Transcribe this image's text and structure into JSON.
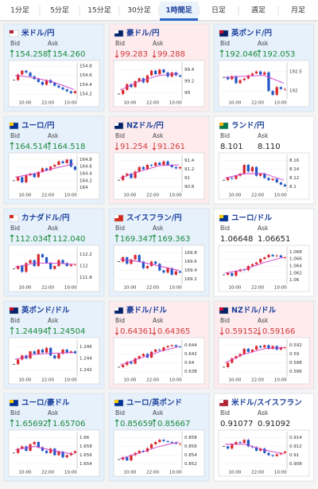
{
  "tabs": {
    "items": [
      "1分足",
      "5分足",
      "15分足",
      "30分足",
      "1時間足",
      "日足",
      "週足",
      "月足"
    ],
    "selected": 4
  },
  "cards": [
    {
      "name": "米ドル/円",
      "trend": "up",
      "bid_label": "Bid",
      "ask_label": "Ask",
      "bid": "154.258",
      "ask": "154.260",
      "chart": {
        "type": "candlestick",
        "ylim": [
          154.1,
          154.85
        ],
        "yticks": [
          154.2,
          154.4,
          154.6,
          154.8
        ],
        "xticks": [
          "10:00",
          "22:00",
          "10:00"
        ],
        "closes": [
          154.5,
          154.62,
          154.7,
          154.66,
          154.58,
          154.52,
          154.46,
          154.4,
          154.5,
          154.44,
          154.38,
          154.34,
          154.3,
          154.26,
          154.22,
          154.26
        ],
        "ma": [
          154.6,
          154.55,
          154.45,
          154.3
        ]
      }
    },
    {
      "name": "豪ドル/円",
      "trend": "down",
      "bid_label": "Bid",
      "ask_label": "Ask",
      "bid": "99.283",
      "ask": "99.288",
      "chart": {
        "type": "candlestick",
        "ylim": [
          98.9,
          99.5
        ],
        "yticks": [
          99,
          99.2,
          99.4
        ],
        "xticks": [
          "10:00",
          "22:00",
          "10:00"
        ],
        "closes": [
          98.98,
          99.05,
          99.15,
          99.1,
          99.2,
          99.25,
          99.18,
          99.3,
          99.38,
          99.32,
          99.4,
          99.35,
          99.28,
          99.35,
          99.3,
          99.28
        ],
        "ma": [
          99.05,
          99.2,
          99.3,
          99.33
        ]
      }
    },
    {
      "name": "英ポンド/円",
      "trend": "up",
      "bid_label": "Bid",
      "ask_label": "Ask",
      "bid": "192.046",
      "ask": "192.053",
      "chart": {
        "type": "candlestick",
        "ylim": [
          191.8,
          192.7
        ],
        "yticks": [
          192,
          192.5
        ],
        "xticks": [
          "10:00",
          "22:00",
          "10:00"
        ],
        "closes": [
          192.35,
          192.3,
          192.38,
          192.2,
          192.28,
          192.32,
          192.4,
          192.45,
          192.5,
          192.42,
          192.48,
          192,
          191.9,
          192.1,
          192.05,
          192.05
        ],
        "ma": [
          192.35,
          192.38,
          192.4,
          192.2
        ]
      }
    },
    {
      "name": "ユーロ/円",
      "trend": "up",
      "bid_label": "Bid",
      "ask_label": "Ask",
      "bid": "164.514",
      "ask": "164.518",
      "chart": {
        "type": "candlestick",
        "ylim": [
          163.9,
          164.9
        ],
        "yticks": [
          164,
          164.2,
          164.4,
          164.6,
          164.8
        ],
        "xticks": [
          "10:00",
          "22:00",
          "10:00"
        ],
        "closes": [
          164.2,
          164.3,
          164.15,
          164.35,
          164.4,
          164.3,
          164.45,
          164.55,
          164.5,
          164.6,
          164.65,
          164.75,
          164.7,
          164.8,
          164.6,
          164.51
        ],
        "ma": [
          164.3,
          164.4,
          164.55,
          164.68
        ]
      }
    },
    {
      "name": "NZドル/円",
      "trend": "down",
      "bid_label": "Bid",
      "ask_label": "Ask",
      "bid": "91.254",
      "ask": "91.261",
      "chart": {
        "type": "candlestick",
        "ylim": [
          90.7,
          91.5
        ],
        "yticks": [
          90.8,
          91,
          91.2,
          91.4
        ],
        "xticks": [
          "10:00",
          "22:00",
          "10:00"
        ],
        "closes": [
          90.95,
          91.05,
          91.1,
          91,
          91.15,
          91.25,
          91.2,
          91.3,
          91.28,
          91.35,
          91.3,
          91.38,
          91.3,
          91.25,
          91.22,
          91.25
        ],
        "ma": [
          91,
          91.15,
          91.28,
          91.3
        ]
      }
    },
    {
      "name": "ランド/円",
      "trend": null,
      "bid_label": "Bid",
      "ask_label": "Ask",
      "bid": "8.101",
      "ask": "8.110",
      "chart": {
        "type": "candlestick",
        "ylim": [
          8.09,
          8.17
        ],
        "yticks": [
          8.1,
          8.12,
          8.14,
          8.16
        ],
        "xticks": [
          "10:00",
          "22:00",
          "10:00"
        ],
        "closes": [
          8.115,
          8.12,
          8.118,
          8.125,
          8.13,
          8.15,
          8.135,
          8.145,
          8.125,
          8.13,
          8.12,
          8.115,
          8.118,
          8.11,
          8.105,
          8.101
        ],
        "ma": [
          8.12,
          8.13,
          8.13,
          8.115
        ]
      }
    },
    {
      "name": "カナダドル/円",
      "trend": "up",
      "bid_label": "Bid",
      "ask_label": "Ask",
      "bid": "112.034",
      "ask": "112.040",
      "chart": {
        "type": "candlestick",
        "ylim": [
          111.7,
          112.3
        ],
        "yticks": [
          111.8,
          112,
          112.2
        ],
        "xticks": [
          "10:00",
          "22:00",
          "10:00"
        ],
        "closes": [
          111.95,
          112,
          111.9,
          112.05,
          112.1,
          112,
          112.2,
          112.15,
          112.05,
          111.95,
          112,
          112.1,
          112.05,
          112,
          112.02,
          112.03
        ],
        "ma": [
          111.98,
          112.05,
          112.05,
          112.03
        ]
      }
    },
    {
      "name": "スイスフラン/円",
      "trend": "up",
      "bid_label": "Bid",
      "ask_label": "Ask",
      "bid": "169.347",
      "ask": "169.363",
      "chart": {
        "type": "candlestick",
        "ylim": [
          169.1,
          169.9
        ],
        "yticks": [
          169.2,
          169.4,
          169.6,
          169.8
        ],
        "xticks": [
          "10:00",
          "22:00",
          "10:00"
        ],
        "closes": [
          169.6,
          169.7,
          169.55,
          169.65,
          169.75,
          169.6,
          169.45,
          169.5,
          169.6,
          169.55,
          169.4,
          169.35,
          169.45,
          169.3,
          169.38,
          169.35
        ],
        "ma": [
          169.65,
          169.6,
          169.5,
          169.4
        ]
      }
    },
    {
      "name": "ユーロ/ドル",
      "trend": null,
      "bid_label": "Bid",
      "ask_label": "Ask",
      "bid": "1.06648",
      "ask": "1.06651",
      "chart": {
        "type": "candlestick",
        "ylim": [
          1.059,
          1.069
        ],
        "yticks": [
          1.06,
          1.062,
          1.064,
          1.066,
          1.068
        ],
        "xticks": [
          "10:00",
          "22:00",
          "10:00"
        ],
        "closes": [
          1.0615,
          1.062,
          1.0612,
          1.0625,
          1.063,
          1.0628,
          1.064,
          1.0645,
          1.065,
          1.066,
          1.0665,
          1.0672,
          1.0668,
          1.067,
          1.0665,
          1.0665
        ],
        "ma": [
          1.062,
          1.063,
          1.065,
          1.0665
        ]
      }
    },
    {
      "name": "英ポンド/ドル",
      "trend": "up",
      "bid_label": "Bid",
      "ask_label": "Ask",
      "bid": "1.24494",
      "ask": "1.24504",
      "chart": {
        "type": "candlestick",
        "ylim": [
          1.241,
          1.247
        ],
        "yticks": [
          1.242,
          1.244,
          1.246
        ],
        "xticks": [
          "10:00",
          "22:00",
          "10:00"
        ],
        "closes": [
          1.243,
          1.2438,
          1.2445,
          1.244,
          1.2452,
          1.2448,
          1.2455,
          1.245,
          1.2458,
          1.2445,
          1.244,
          1.2448,
          1.2455,
          1.245,
          1.2452,
          1.2449
        ],
        "ma": [
          1.2438,
          1.2447,
          1.2449,
          1.245
        ]
      }
    },
    {
      "name": "豪ドル/ドル",
      "trend": "down",
      "bid_label": "Bid",
      "ask_label": "Ask",
      "bid": "0.64361",
      "ask": "0.64365",
      "chart": {
        "type": "candlestick",
        "ylim": [
          0.637,
          0.645
        ],
        "yticks": [
          0.638,
          0.64,
          0.642,
          0.644
        ],
        "xticks": [
          "10:00",
          "22:00",
          "10:00"
        ],
        "closes": [
          0.639,
          0.6395,
          0.6402,
          0.6398,
          0.641,
          0.6415,
          0.642,
          0.6412,
          0.6425,
          0.643,
          0.6428,
          0.6435,
          0.6438,
          0.644,
          0.6437,
          0.6436
        ],
        "ma": [
          0.6395,
          0.641,
          0.6425,
          0.6437
        ]
      }
    },
    {
      "name": "NZドル/ドル",
      "trend": "down",
      "bid_label": "Bid",
      "ask_label": "Ask",
      "bid": "0.59152",
      "ask": "0.59166",
      "chart": {
        "type": "candlestick",
        "ylim": [
          0.585,
          0.593
        ],
        "yticks": [
          0.586,
          0.588,
          0.59,
          0.592
        ],
        "xticks": [
          "10:00",
          "22:00",
          "10:00"
        ],
        "closes": [
          0.587,
          0.588,
          0.589,
          0.5895,
          0.59,
          0.5912,
          0.5905,
          0.591,
          0.5918,
          0.5915,
          0.592,
          0.5912,
          0.5918,
          0.591,
          0.5915,
          0.5915
        ],
        "ma": [
          0.588,
          0.59,
          0.5912,
          0.5915
        ]
      }
    },
    {
      "name": "ユーロ/豪ドル",
      "trend": "up",
      "bid_label": "Bid",
      "ask_label": "Ask",
      "bid": "1.65692",
      "ask": "1.65706",
      "chart": {
        "type": "candlestick",
        "ylim": [
          1.653,
          1.661
        ],
        "yticks": [
          1.654,
          1.656,
          1.658,
          1.66
        ],
        "xticks": [
          "10:00",
          "22:00",
          "10:00"
        ],
        "closes": [
          1.6565,
          1.6575,
          1.658,
          1.657,
          1.6585,
          1.659,
          1.6578,
          1.657,
          1.6565,
          1.6575,
          1.656,
          1.6568,
          1.6555,
          1.656,
          1.6565,
          1.6569
        ],
        "ma": [
          1.6572,
          1.658,
          1.657,
          1.6562
        ]
      }
    },
    {
      "name": "ユーロ/英ポンド",
      "trend": "up",
      "bid_label": "Bid",
      "ask_label": "Ask",
      "bid": "0.85659",
      "ask": "0.85667",
      "chart": {
        "type": "candlestick",
        "ylim": [
          0.851,
          0.859
        ],
        "yticks": [
          0.852,
          0.854,
          0.856,
          0.858
        ],
        "xticks": [
          "10:00",
          "22:00",
          "10:00"
        ],
        "closes": [
          0.853,
          0.8535,
          0.8528,
          0.854,
          0.8545,
          0.855,
          0.8548,
          0.8556,
          0.8565,
          0.857,
          0.8575,
          0.8572,
          0.857,
          0.8568,
          0.8566,
          0.8566
        ],
        "ma": [
          0.8532,
          0.8545,
          0.856,
          0.857
        ]
      }
    },
    {
      "name": "米ドル/スイスフラン",
      "trend": null,
      "bid_label": "Bid",
      "ask_label": "Ask",
      "bid": "0.91077",
      "ask": "0.91092",
      "chart": {
        "type": "candlestick",
        "ylim": [
          0.907,
          0.915
        ],
        "yticks": [
          0.908,
          0.91,
          0.912,
          0.914
        ],
        "xticks": [
          "10:00",
          "22:00",
          "10:00"
        ],
        "closes": [
          0.912,
          0.9115,
          0.9125,
          0.913,
          0.9128,
          0.9135,
          0.912,
          0.9118,
          0.911,
          0.9115,
          0.9105,
          0.91,
          0.9098,
          0.9102,
          0.9105,
          0.9108
        ],
        "ma": [
          0.9125,
          0.9125,
          0.9112,
          0.9103
        ]
      }
    }
  ]
}
